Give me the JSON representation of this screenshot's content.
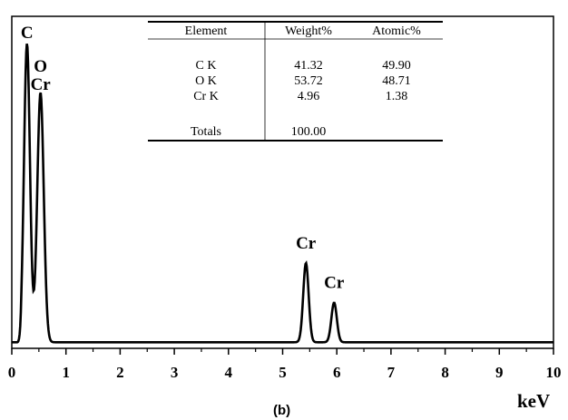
{
  "chart_data": {
    "type": "line",
    "panel_label": "(b)",
    "xlabel": "keV",
    "ylabel": "",
    "xlim": [
      0,
      10
    ],
    "ylim": [
      0,
      100
    ],
    "x_ticks": [
      "0",
      "1",
      "2",
      "3",
      "4",
      "5",
      "6",
      "7",
      "8",
      "9",
      "10"
    ],
    "grid": false,
    "line_color": "#000000",
    "baseline": 2,
    "peaks": [
      {
        "label": "C",
        "x": 0.28,
        "y": 100,
        "width": 0.055
      },
      {
        "label": "O",
        "x": 0.53,
        "y": 84,
        "width": 0.06
      },
      {
        "label": "Cr",
        "x": 5.43,
        "y": 28,
        "width": 0.05
      },
      {
        "label": "Cr",
        "x": 5.95,
        "y": 15,
        "width": 0.05
      }
    ],
    "peak_annotations": [
      {
        "text": "C",
        "x": 0.28,
        "y": 100
      },
      {
        "text": "O",
        "x": 0.53,
        "y": 89
      },
      {
        "text": "Cr",
        "x": 0.53,
        "y": 83
      },
      {
        "text": "Cr",
        "x": 5.43,
        "y": 31
      },
      {
        "text": "Cr",
        "x": 5.95,
        "y": 18
      }
    ],
    "table": {
      "headers": [
        "Element",
        "Weight%",
        "Atomic%"
      ],
      "rows": [
        [
          "C K",
          "41.32",
          "49.90"
        ],
        [
          "O K",
          "53.72",
          "48.71"
        ],
        [
          "Cr K",
          "4.96",
          "1.38"
        ]
      ],
      "totals_label": "Totals",
      "totals_value": "100.00"
    }
  }
}
